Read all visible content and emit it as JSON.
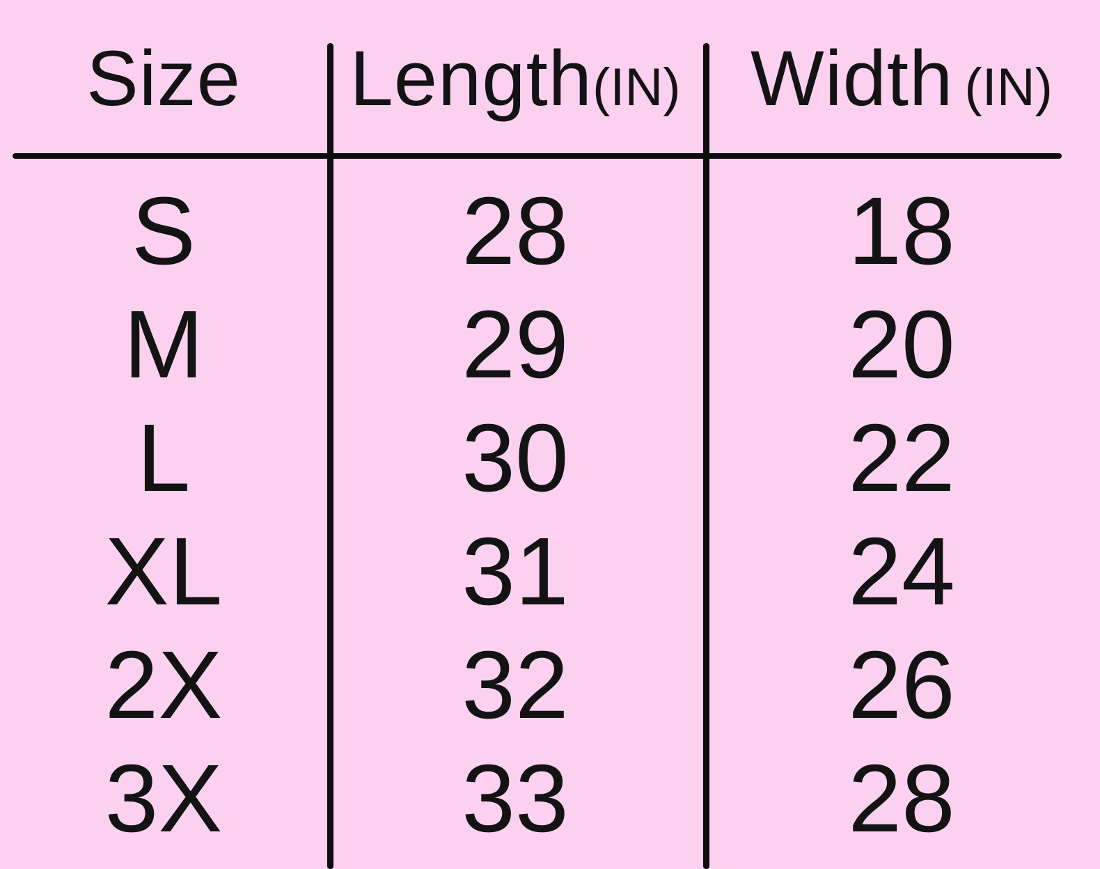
{
  "page": {
    "background_color": "#fcd1f0",
    "text_color": "#131313",
    "line_color": "#0d0d0d"
  },
  "table": {
    "columns": [
      {
        "label": "Size",
        "unit": ""
      },
      {
        "label": "Length",
        "unit": "(IN)"
      },
      {
        "label": "Width",
        "unit": "(IN)"
      }
    ],
    "rows": [
      {
        "size": "S",
        "length": "28",
        "width": "18"
      },
      {
        "size": "M",
        "length": "29",
        "width": "20"
      },
      {
        "size": "L",
        "length": "30",
        "width": "22"
      },
      {
        "size": "XL",
        "length": "31",
        "width": "24"
      },
      {
        "size": "2X",
        "length": "32",
        "width": "26"
      },
      {
        "size": "3X",
        "length": "33",
        "width": "28"
      }
    ]
  },
  "chart_data": {
    "type": "table",
    "title": "",
    "columns": [
      "Size",
      "Length(IN)",
      "Width (IN)"
    ],
    "rows": [
      [
        "S",
        "28",
        "18"
      ],
      [
        "M",
        "29",
        "20"
      ],
      [
        "L",
        "30",
        "22"
      ],
      [
        "XL",
        "31",
        "24"
      ],
      [
        "2X",
        "32",
        "26"
      ],
      [
        "3X",
        "33",
        "28"
      ]
    ]
  }
}
